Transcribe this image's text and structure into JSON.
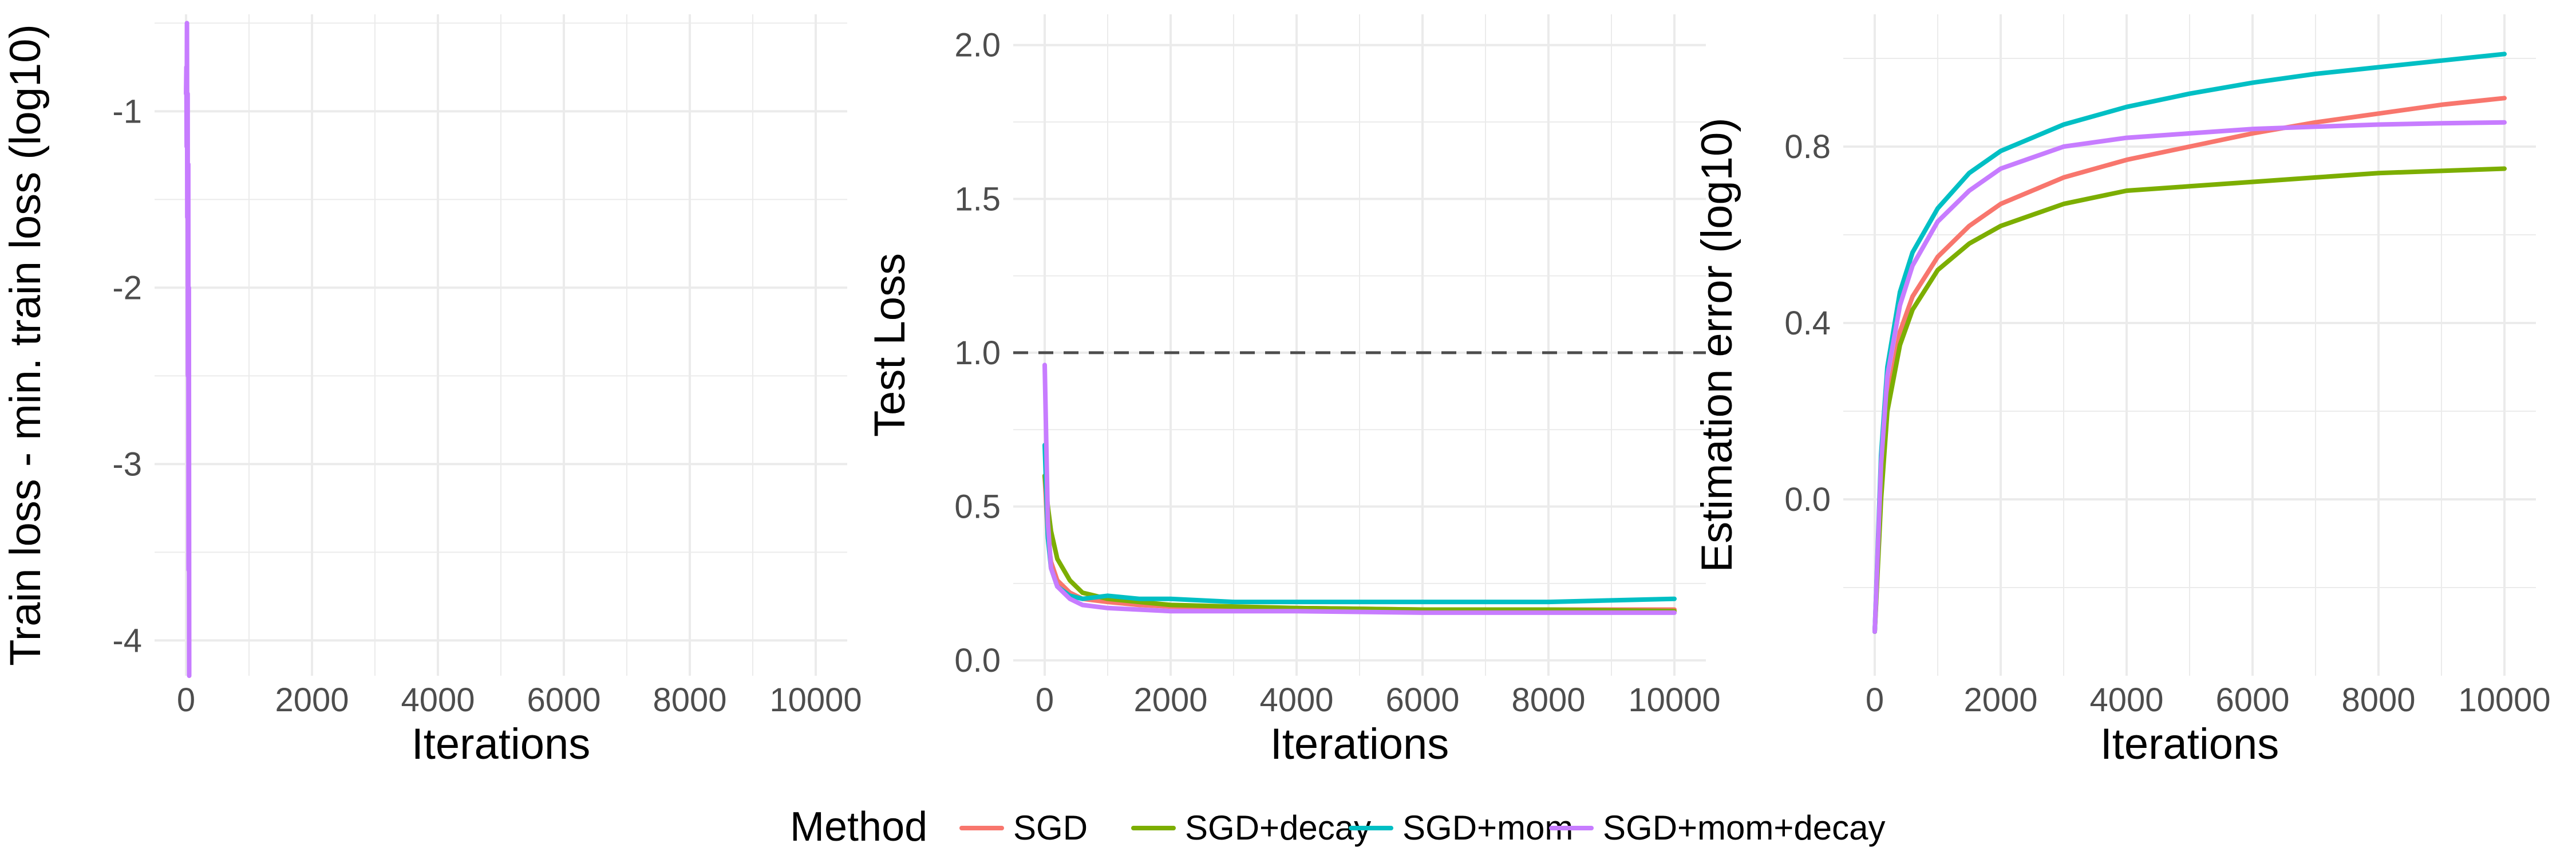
{
  "chart_data": [
    {
      "type": "line",
      "title": "",
      "xlabel": "Iterations",
      "ylabel": "Train loss - min. train loss (log10)",
      "xlim": [
        -500,
        10500
      ],
      "ylim": [
        -4.2,
        -0.45
      ],
      "x_ticks": [
        0,
        2000,
        4000,
        6000,
        8000,
        10000
      ],
      "y_ticks": [
        -4,
        -3,
        -2,
        -1
      ],
      "y_tick_labels": [
        "-4",
        "-3",
        "-2",
        "-1"
      ],
      "grid": true,
      "series": [
        {
          "name": "SGD+mom+decay",
          "x": [
            0,
            5,
            10,
            15,
            20,
            25,
            30,
            35,
            40,
            45,
            50
          ],
          "y": [
            -0.9,
            -0.75,
            -1.2,
            -0.5,
            -1.6,
            -0.9,
            -2.5,
            -1.3,
            -3.6,
            -2.0,
            -4.2
          ]
        }
      ]
    },
    {
      "type": "line",
      "title": "",
      "xlabel": "Iterations",
      "ylabel": "Test Loss",
      "xlim": [
        -500,
        10500
      ],
      "ylim": [
        -0.05,
        2.1
      ],
      "x_ticks": [
        0,
        2000,
        4000,
        6000,
        8000,
        10000
      ],
      "y_ticks": [
        0.0,
        0.5,
        1.0,
        1.5,
        2.0
      ],
      "y_tick_labels": [
        "0.0",
        "0.5",
        "1.0",
        "1.5",
        "2.0"
      ],
      "reference_line": 1.0,
      "grid": true,
      "series": [
        {
          "name": "SGD",
          "x": [
            0,
            50,
            100,
            200,
            400,
            600,
            1000,
            1500,
            2000,
            3000,
            4000,
            6000,
            8000,
            10000
          ],
          "y": [
            0.6,
            0.4,
            0.32,
            0.26,
            0.22,
            0.2,
            0.19,
            0.18,
            0.175,
            0.17,
            0.17,
            0.165,
            0.165,
            0.165
          ]
        },
        {
          "name": "SGD+decay",
          "x": [
            0,
            50,
            100,
            200,
            400,
            600,
            1000,
            1500,
            2000,
            3000,
            4000,
            6000,
            8000,
            10000
          ],
          "y": [
            0.6,
            0.5,
            0.42,
            0.33,
            0.26,
            0.22,
            0.2,
            0.19,
            0.18,
            0.175,
            0.17,
            0.165,
            0.165,
            0.16
          ]
        },
        {
          "name": "SGD+mom",
          "x": [
            0,
            50,
            100,
            200,
            400,
            600,
            1000,
            1500,
            2000,
            3000,
            4000,
            6000,
            8000,
            10000
          ],
          "y": [
            0.7,
            0.4,
            0.3,
            0.24,
            0.21,
            0.2,
            0.21,
            0.2,
            0.2,
            0.19,
            0.19,
            0.19,
            0.19,
            0.2
          ]
        },
        {
          "name": "SGD+mom+decay",
          "x": [
            0,
            50,
            100,
            200,
            400,
            600,
            1000,
            1500,
            2000,
            3000,
            4000,
            6000,
            8000,
            10000
          ],
          "y": [
            0.96,
            0.45,
            0.3,
            0.24,
            0.2,
            0.18,
            0.17,
            0.165,
            0.16,
            0.16,
            0.16,
            0.155,
            0.155,
            0.155
          ]
        }
      ]
    },
    {
      "type": "line",
      "title": "",
      "xlabel": "Iterations",
      "ylabel": "Estimation error (log10)",
      "xlim": [
        -500,
        10500
      ],
      "ylim": [
        -0.4,
        1.1
      ],
      "x_ticks": [
        0,
        2000,
        4000,
        6000,
        8000,
        10000
      ],
      "y_ticks": [
        0.0,
        0.4,
        0.8
      ],
      "y_tick_labels": [
        "0.0",
        "0.4",
        "0.8"
      ],
      "grid": true,
      "series": [
        {
          "name": "SGD",
          "x": [
            0,
            100,
            200,
            400,
            600,
            1000,
            1500,
            2000,
            3000,
            4000,
            5000,
            6000,
            7000,
            8000,
            9000,
            10000
          ],
          "y": [
            -0.3,
            0.02,
            0.22,
            0.38,
            0.46,
            0.55,
            0.62,
            0.67,
            0.73,
            0.77,
            0.8,
            0.83,
            0.855,
            0.875,
            0.895,
            0.91
          ]
        },
        {
          "name": "SGD+decay",
          "x": [
            0,
            100,
            200,
            400,
            600,
            1000,
            1500,
            2000,
            3000,
            4000,
            5000,
            6000,
            7000,
            8000,
            9000,
            10000
          ],
          "y": [
            -0.3,
            0.0,
            0.2,
            0.35,
            0.43,
            0.52,
            0.58,
            0.62,
            0.67,
            0.7,
            0.71,
            0.72,
            0.73,
            0.74,
            0.745,
            0.75
          ]
        },
        {
          "name": "SGD+mom",
          "x": [
            0,
            100,
            200,
            400,
            600,
            1000,
            1500,
            2000,
            3000,
            4000,
            5000,
            6000,
            7000,
            8000,
            9000,
            10000
          ],
          "y": [
            -0.3,
            0.1,
            0.3,
            0.47,
            0.56,
            0.66,
            0.74,
            0.79,
            0.85,
            0.89,
            0.92,
            0.945,
            0.965,
            0.98,
            0.995,
            1.01
          ]
        },
        {
          "name": "SGD+mom+decay",
          "x": [
            0,
            100,
            200,
            400,
            600,
            1000,
            1500,
            2000,
            3000,
            4000,
            5000,
            6000,
            7000,
            8000,
            9000,
            10000
          ],
          "y": [
            -0.3,
            0.08,
            0.28,
            0.44,
            0.53,
            0.63,
            0.7,
            0.75,
            0.8,
            0.82,
            0.83,
            0.84,
            0.845,
            0.85,
            0.853,
            0.855
          ]
        }
      ]
    }
  ],
  "legend": {
    "title": "Method",
    "position": "bottom",
    "items": [
      {
        "label": "SGD",
        "color": "#F8766D"
      },
      {
        "label": "SGD+decay",
        "color": "#7CAE00"
      },
      {
        "label": "SGD+mom",
        "color": "#00BFC4"
      },
      {
        "label": "SGD+mom+decay",
        "color": "#C77CFF"
      }
    ]
  },
  "reference_line_color": "#4d4d4d",
  "grid_color": "#ebebeb"
}
